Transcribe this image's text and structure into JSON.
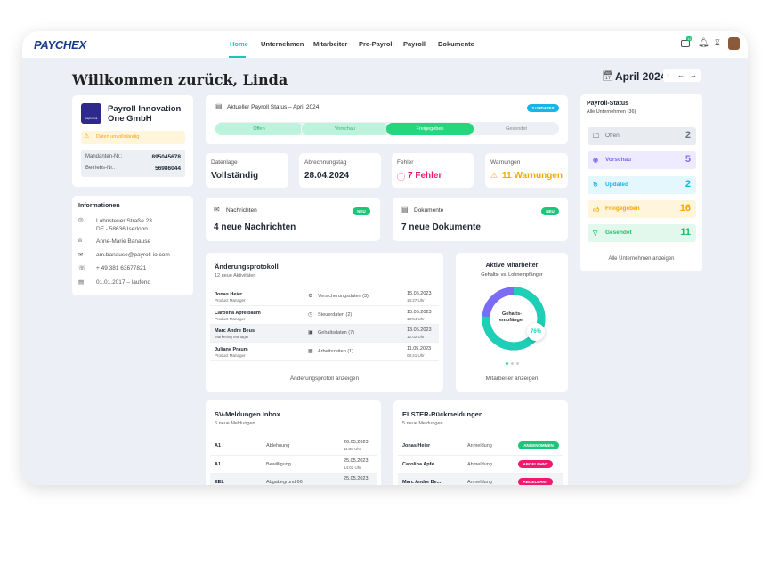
{
  "header": {
    "logo": "PAYCHEX",
    "nav": [
      "Home",
      "Unternehmen",
      "Mitarbeiter",
      "Pre-Payroll",
      "Payroll",
      "Dokumente"
    ],
    "active": "Home",
    "mail_badge": "12"
  },
  "welcome": "Willkommen zurück, Linda",
  "period": {
    "label": "April 2024"
  },
  "company": {
    "name_line1": "Payroll Innovation",
    "name_line2": "One GmbH",
    "logo_text": "payinnova",
    "warning": "Daten unvollständig",
    "mandant_label": "Mandanten-Nr.:",
    "mandant_value": "895045678",
    "betrieb_label": "Betriebs-Nr.:",
    "betrieb_value": "56986044"
  },
  "info": {
    "title": "Informationen",
    "address1": "Lohnsteuer Straße 23",
    "address2": "DE - 58636 Iserlohn",
    "contact": "Anne-Marie Banause",
    "email": "am.banause@payroll-io.com",
    "phone": "+ 49 381 63677821",
    "period": "01.01.2017 – laufend"
  },
  "payroll_status": {
    "title": "Aktueller Payroll Status – April 2024",
    "badge": "2 UPDATES",
    "steps": [
      "Offen",
      "Vorschau",
      "Freigegeben",
      "Gesendet"
    ],
    "current": "Freigegeben"
  },
  "kpis": [
    {
      "label": "Datenlage",
      "value": "Vollständig"
    },
    {
      "label": "Abrechnungstag",
      "value": "28.04.2024"
    },
    {
      "label": "Fehler",
      "value": "7 Fehler",
      "color": "#f0196e"
    },
    {
      "label": "Warnungen",
      "value": "11 Warnungen",
      "color": "#f5a800"
    }
  ],
  "messages": {
    "label": "Nachrichten",
    "badge": "NEU",
    "value": "4 neue Nachrichten"
  },
  "documents": {
    "label": "Dokumente",
    "badge": "NEU",
    "value": "7 neue Dokumente"
  },
  "changelog": {
    "title": "Änderungsprotokoll",
    "subtitle": "12 neue Aktivitäten",
    "rows": [
      {
        "name": "Jonas Heier",
        "role": "Product Manager",
        "item": "Versicherungsdaten (3)",
        "date": "15.05.2023",
        "time": "14:27 Uhr"
      },
      {
        "name": "Carolina Apfelbaum",
        "role": "Product Manager",
        "item": "Steuerdaten (2)",
        "date": "15.05.2023",
        "time": "13:54 Uhr"
      },
      {
        "name": "Marc Andre Beus",
        "role": "Marketing Manager",
        "item": "Gehaltsdaten (7)",
        "date": "13.05.2023",
        "time": "12:02 Uhr"
      },
      {
        "name": "Juliane Praum",
        "role": "Product Manager",
        "item": "Arbeitszeiten (1)",
        "date": "11.05.2023",
        "time": "08:41 Uhr"
      }
    ],
    "link": "Änderungsprotoll anzeigen"
  },
  "employees": {
    "title": "Aktive Mitarbeiter",
    "subtitle": "Gehalts- vs. Lohnempfänger",
    "center1": "Gehalts-",
    "center2": "empfänger",
    "percent": "76%",
    "share": 0.76,
    "link": "Mitarbeiter anzeigen",
    "colors": {
      "salary": "#1ccfb5",
      "wage": "#7b6cf6"
    }
  },
  "sv": {
    "title": "SV-Meldungen Inbox",
    "subtitle": "6 neue Meldungen",
    "rows": [
      {
        "code": "A1",
        "type": "Ablehnung",
        "date": "26.05.2023",
        "time": "11:38 Uhr"
      },
      {
        "code": "A1",
        "type": "Bewilligung",
        "date": "25.05.2023",
        "time": "14:02 Uhr"
      },
      {
        "code": "EEL",
        "type": "Abgabegrund 66",
        "date": "25.05.2023",
        "time": ""
      }
    ]
  },
  "elster": {
    "title": "ELSTER-Rückmeldungen",
    "subtitle": "5 neue Meldungen",
    "rows": [
      {
        "name": "Jonas Heier",
        "type": "Anmeldung",
        "status": "ANGENOMMEN"
      },
      {
        "name": "Carolina Apfe...",
        "type": "Abmeldung",
        "status": "ABGELEHNT"
      },
      {
        "name": "Marc Andre Be...",
        "type": "Anmeldung",
        "status": "ABGELEHNT"
      }
    ]
  },
  "status_panel": {
    "title": "Payroll-Status",
    "subtitle": "Alle Unternehmen (36)",
    "items": [
      {
        "label": "Offen",
        "count": "2",
        "color": "#6b7280",
        "bg": "#e8ebf0"
      },
      {
        "label": "Vorschau",
        "count": "5",
        "color": "#7b6cf6",
        "bg": "#eeebff"
      },
      {
        "label": "Updated",
        "count": "2",
        "color": "#17b5e8",
        "bg": "#e3f7fc"
      },
      {
        "label": "Freigegeben",
        "count": "16",
        "color": "#f5a800",
        "bg": "#fff4dc"
      },
      {
        "label": "Gesendet",
        "count": "11",
        "color": "#1dbf6a",
        "bg": "#e3f8ec"
      }
    ],
    "link": "Alle Unternehmen anzeigen"
  }
}
